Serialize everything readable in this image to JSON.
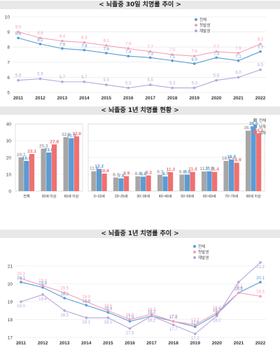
{
  "sections": [
    {
      "title": "< 뇌졸중 30일 치명률 추이 >"
    },
    {
      "title": "< 뇌졸중 1년 치명률 현황 >"
    },
    {
      "title": "< 뇌졸중 1년 치명률 추이 >"
    }
  ],
  "colors": {
    "total": "#5b9bd5",
    "first": "#f4a0b8",
    "recur": "#b9a6d8",
    "bar_total": "#a6a6a6",
    "bar_male": "#5b9bd5",
    "bar_female": "#f07070"
  },
  "chart_data": [
    {
      "type": "line",
      "x": [
        "2011",
        "2012",
        "2013",
        "2014",
        "2015",
        "2016",
        "2017",
        "2018",
        "2019",
        "2020",
        "2021",
        "2022"
      ],
      "ylim": [
        5,
        10
      ],
      "yticks": [
        5,
        6,
        7,
        8,
        9,
        10
      ],
      "grid": true,
      "legend_position": "top-right",
      "series": [
        {
          "name": "전체",
          "color": "#5b9bd5",
          "values": [
            8.6,
            8.2,
            7.9,
            7.8,
            7.6,
            7.4,
            7.3,
            7.1,
            6.9,
            7.3,
            7.1,
            7.7
          ]
        },
        {
          "name": "첫발생",
          "color": "#f4a0b8",
          "values": [
            9.0,
            8.6,
            8.4,
            8.3,
            8.1,
            7.9,
            7.7,
            7.5,
            7.4,
            7.7,
            7.6,
            8.2
          ]
        },
        {
          "name": "재발생",
          "color": "#b9a6d8",
          "values": [
            5.8,
            5.9,
            5.7,
            5.7,
            5.5,
            5.3,
            5.5,
            5.3,
            5.3,
            5.8,
            6.0,
            6.5
          ]
        }
      ]
    },
    {
      "type": "bar",
      "ylim": [
        0,
        40
      ],
      "yticks": [
        0,
        10,
        20,
        30,
        40
      ],
      "grid": true,
      "legend_position": "top-right",
      "groups_left": [
        "전체",
        "20세 이상",
        "65세 이상"
      ],
      "groups_right": [
        "0~19세",
        "20~29세",
        "30~39세",
        "40~49세",
        "50~59세",
        "60~69세",
        "70~79세",
        "80세 이상"
      ],
      "series": [
        {
          "name": "전체",
          "color": "#a6a6a6",
          "left": [
            20.1,
            25.3,
            32.1
          ],
          "right": [
            11.8,
            8.1,
            8.8,
            9.7,
            9.8,
            11.7,
            18.0,
            36.0
          ]
        },
        {
          "name": "남자",
          "color": "#5b9bd5",
          "left": [
            18.0,
            23.0,
            31.5
          ],
          "right": [
            13.2,
            7.6,
            8.6,
            8.7,
            9.8,
            11.8,
            18.8,
            38.5
          ]
        },
        {
          "name": "여자",
          "color": "#f07070",
          "left": [
            22.1,
            27.8,
            32.6
          ],
          "right": [
            10.4,
            8.9,
            9.3,
            11.3,
            11.4,
            11.4,
            16.9,
            34.4
          ]
        }
      ]
    },
    {
      "type": "line",
      "x": [
        "2011",
        "2012",
        "2013",
        "2014",
        "2015",
        "2016",
        "2017",
        "2018",
        "2019",
        "2020",
        "2021",
        "2022"
      ],
      "ylim": [
        17,
        21
      ],
      "yticks": [
        17,
        18,
        19,
        20,
        21
      ],
      "grid": true,
      "legend_position": "top-right",
      "series": [
        {
          "name": "전체",
          "color": "#5b9bd5",
          "values": [
            20.1,
            19.8,
            19.2,
            18.8,
            18.4,
            17.9,
            18.2,
            17.9,
            17.6,
            18.3,
            19.5,
            20.1
          ]
        },
        {
          "name": "첫발생",
          "color": "#f4a0b8",
          "values": [
            20.3,
            19.9,
            19.5,
            19.0,
            18.5,
            18.0,
            18.3,
            17.9,
            17.7,
            18.4,
            19.5,
            19.3
          ]
        },
        {
          "name": "재발생",
          "color": "#b9a6d8",
          "values": [
            19.0,
            19.4,
            18.5,
            18.1,
            18.1,
            17.5,
            18.2,
            17.7,
            17.2,
            18.2,
            20.1,
            21.2
          ]
        }
      ]
    }
  ]
}
